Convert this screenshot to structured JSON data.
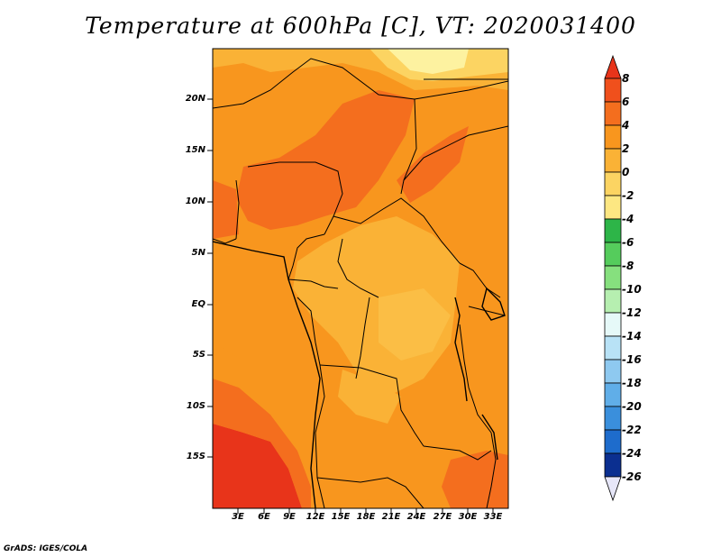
{
  "title": "Temperature at 600hPa [C], VT: 2020031400",
  "credit": "GrADS: IGES/COLA",
  "y_ticks": [
    "20N",
    "15N",
    "10N",
    "5N",
    "EQ",
    "5S",
    "10S",
    "15S"
  ],
  "x_ticks": [
    "3E",
    "6E",
    "9E",
    "12E",
    "15E",
    "18E",
    "21E",
    "24E",
    "27E",
    "30E",
    "33E"
  ],
  "colorbar": {
    "labels": [
      "8",
      "6",
      "4",
      "2",
      "0",
      "-2",
      "-4",
      "-6",
      "-8",
      "-10",
      "-12",
      "-14",
      "-16",
      "-18",
      "-20",
      "-22",
      "-24",
      "-26"
    ],
    "colors": [
      "#e8341a",
      "#f0501c",
      "#f46e1e",
      "#f8961e",
      "#fab236",
      "#fcd462",
      "#fdf2a0",
      "#2db548",
      "#55cc5c",
      "#86e07e",
      "#b6efb0",
      "#e6f9f8",
      "#b8e2f6",
      "#8ec9f0",
      "#60aee8",
      "#3a8fdc",
      "#1e6ccc",
      "#134fb4",
      "#0b2f90",
      "#06166a",
      "#e6e6f8"
    ]
  },
  "legend_colors": {
    "c_low": "#fab236",
    "c_mid": "#f8961e",
    "c_high": "#f46e1e",
    "c_hot": "#e8341a",
    "c_cool": "#fdf2a0"
  }
}
